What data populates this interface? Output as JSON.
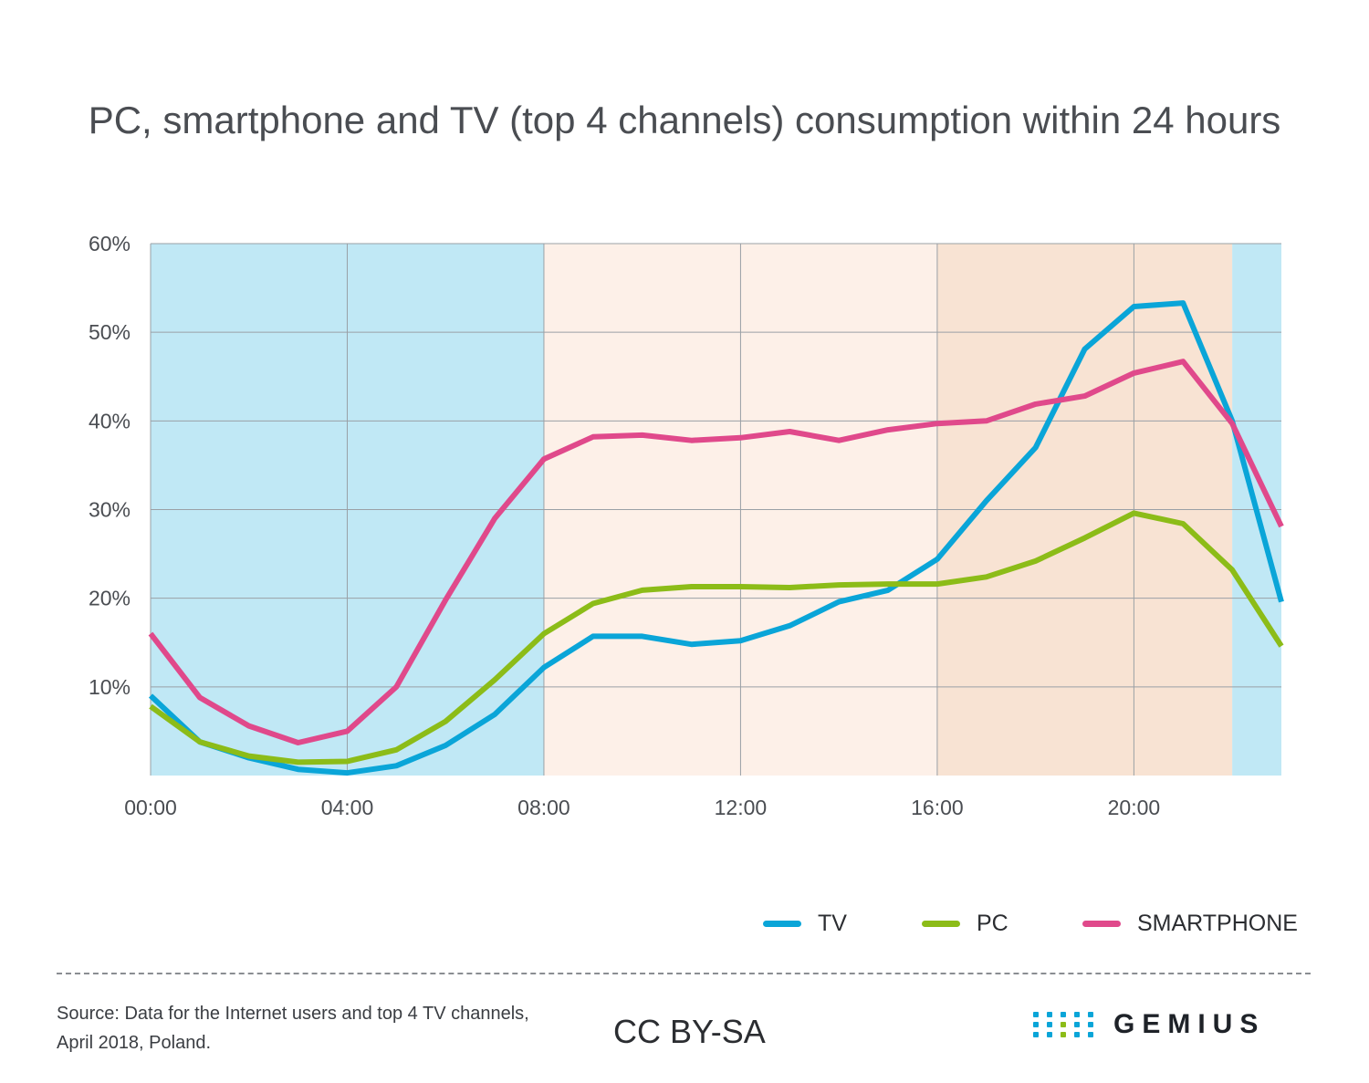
{
  "title": "PC, smartphone and TV (top 4 channels) consumption within 24 hours",
  "chart_data": {
    "type": "line",
    "x": [
      0,
      1,
      2,
      3,
      4,
      5,
      6,
      7,
      8,
      9,
      10,
      11,
      12,
      13,
      14,
      15,
      16,
      17,
      18,
      19,
      20,
      21,
      22,
      23
    ],
    "xticks": [
      0,
      4,
      8,
      12,
      16,
      20
    ],
    "xtick_labels": [
      "00:00",
      "04:00",
      "08:00",
      "12:00",
      "16:00",
      "20:00"
    ],
    "xlim": [
      0,
      23
    ],
    "ylim": [
      0,
      60
    ],
    "yticks": [
      10,
      20,
      30,
      40,
      50,
      60
    ],
    "ytick_labels": [
      "10%",
      "20%",
      "30%",
      "40%",
      "50%",
      "60%"
    ],
    "grid": true,
    "legend": "bottom-right",
    "background_bands": [
      {
        "from": 0,
        "to": 8,
        "color": "#c0e8f5"
      },
      {
        "from": 8,
        "to": 16,
        "color": "#fdf0e8"
      },
      {
        "from": 16,
        "to": 22,
        "color": "#f8e3d3"
      },
      {
        "from": 22,
        "to": 23,
        "color": "#c0e8f5"
      }
    ],
    "series": [
      {
        "name": "TV",
        "color": "#0aa5d8",
        "values": [
          9.0,
          3.8,
          2.0,
          0.7,
          0.3,
          1.1,
          3.4,
          6.9,
          12.2,
          15.7,
          15.7,
          14.8,
          15.2,
          16.9,
          19.6,
          20.9,
          24.4,
          31.0,
          37.0,
          48.1,
          52.9,
          53.3,
          40.0,
          19.6
        ]
      },
      {
        "name": "PC",
        "color": "#8cbc18",
        "values": [
          7.8,
          3.8,
          2.2,
          1.5,
          1.6,
          2.9,
          6.1,
          10.8,
          16.0,
          19.4,
          20.9,
          21.3,
          21.3,
          21.2,
          21.5,
          21.6,
          21.6,
          22.4,
          24.2,
          26.8,
          29.6,
          28.4,
          23.2,
          14.6
        ]
      },
      {
        "name": "SMARTPHONE",
        "color": "#e0498b",
        "values": [
          16.0,
          8.8,
          5.6,
          3.7,
          5.0,
          10.0,
          19.8,
          29.0,
          35.7,
          38.2,
          38.4,
          37.8,
          38.1,
          38.8,
          37.8,
          39.0,
          39.7,
          40.0,
          41.9,
          42.8,
          45.4,
          46.7,
          39.7,
          28.1
        ]
      }
    ]
  },
  "footer": {
    "source_line1": "Source: Data for the Internet users and top 4 TV channels,",
    "source_line2": "April 2018, Poland.",
    "license": "CC BY-SA",
    "logo_text": "GEMIUS",
    "logo_dot_colors": [
      "#0aa5d8",
      "#0aa5d8",
      "#0aa5d8",
      "#0aa5d8",
      "#0aa5d8",
      "#0aa5d8",
      "#0aa5d8",
      "#8cbc18",
      "#0aa5d8",
      "#0aa5d8",
      "#0aa5d8",
      "#0aa5d8",
      "#8cbc18",
      "#0aa5d8",
      "#0aa5d8"
    ]
  }
}
